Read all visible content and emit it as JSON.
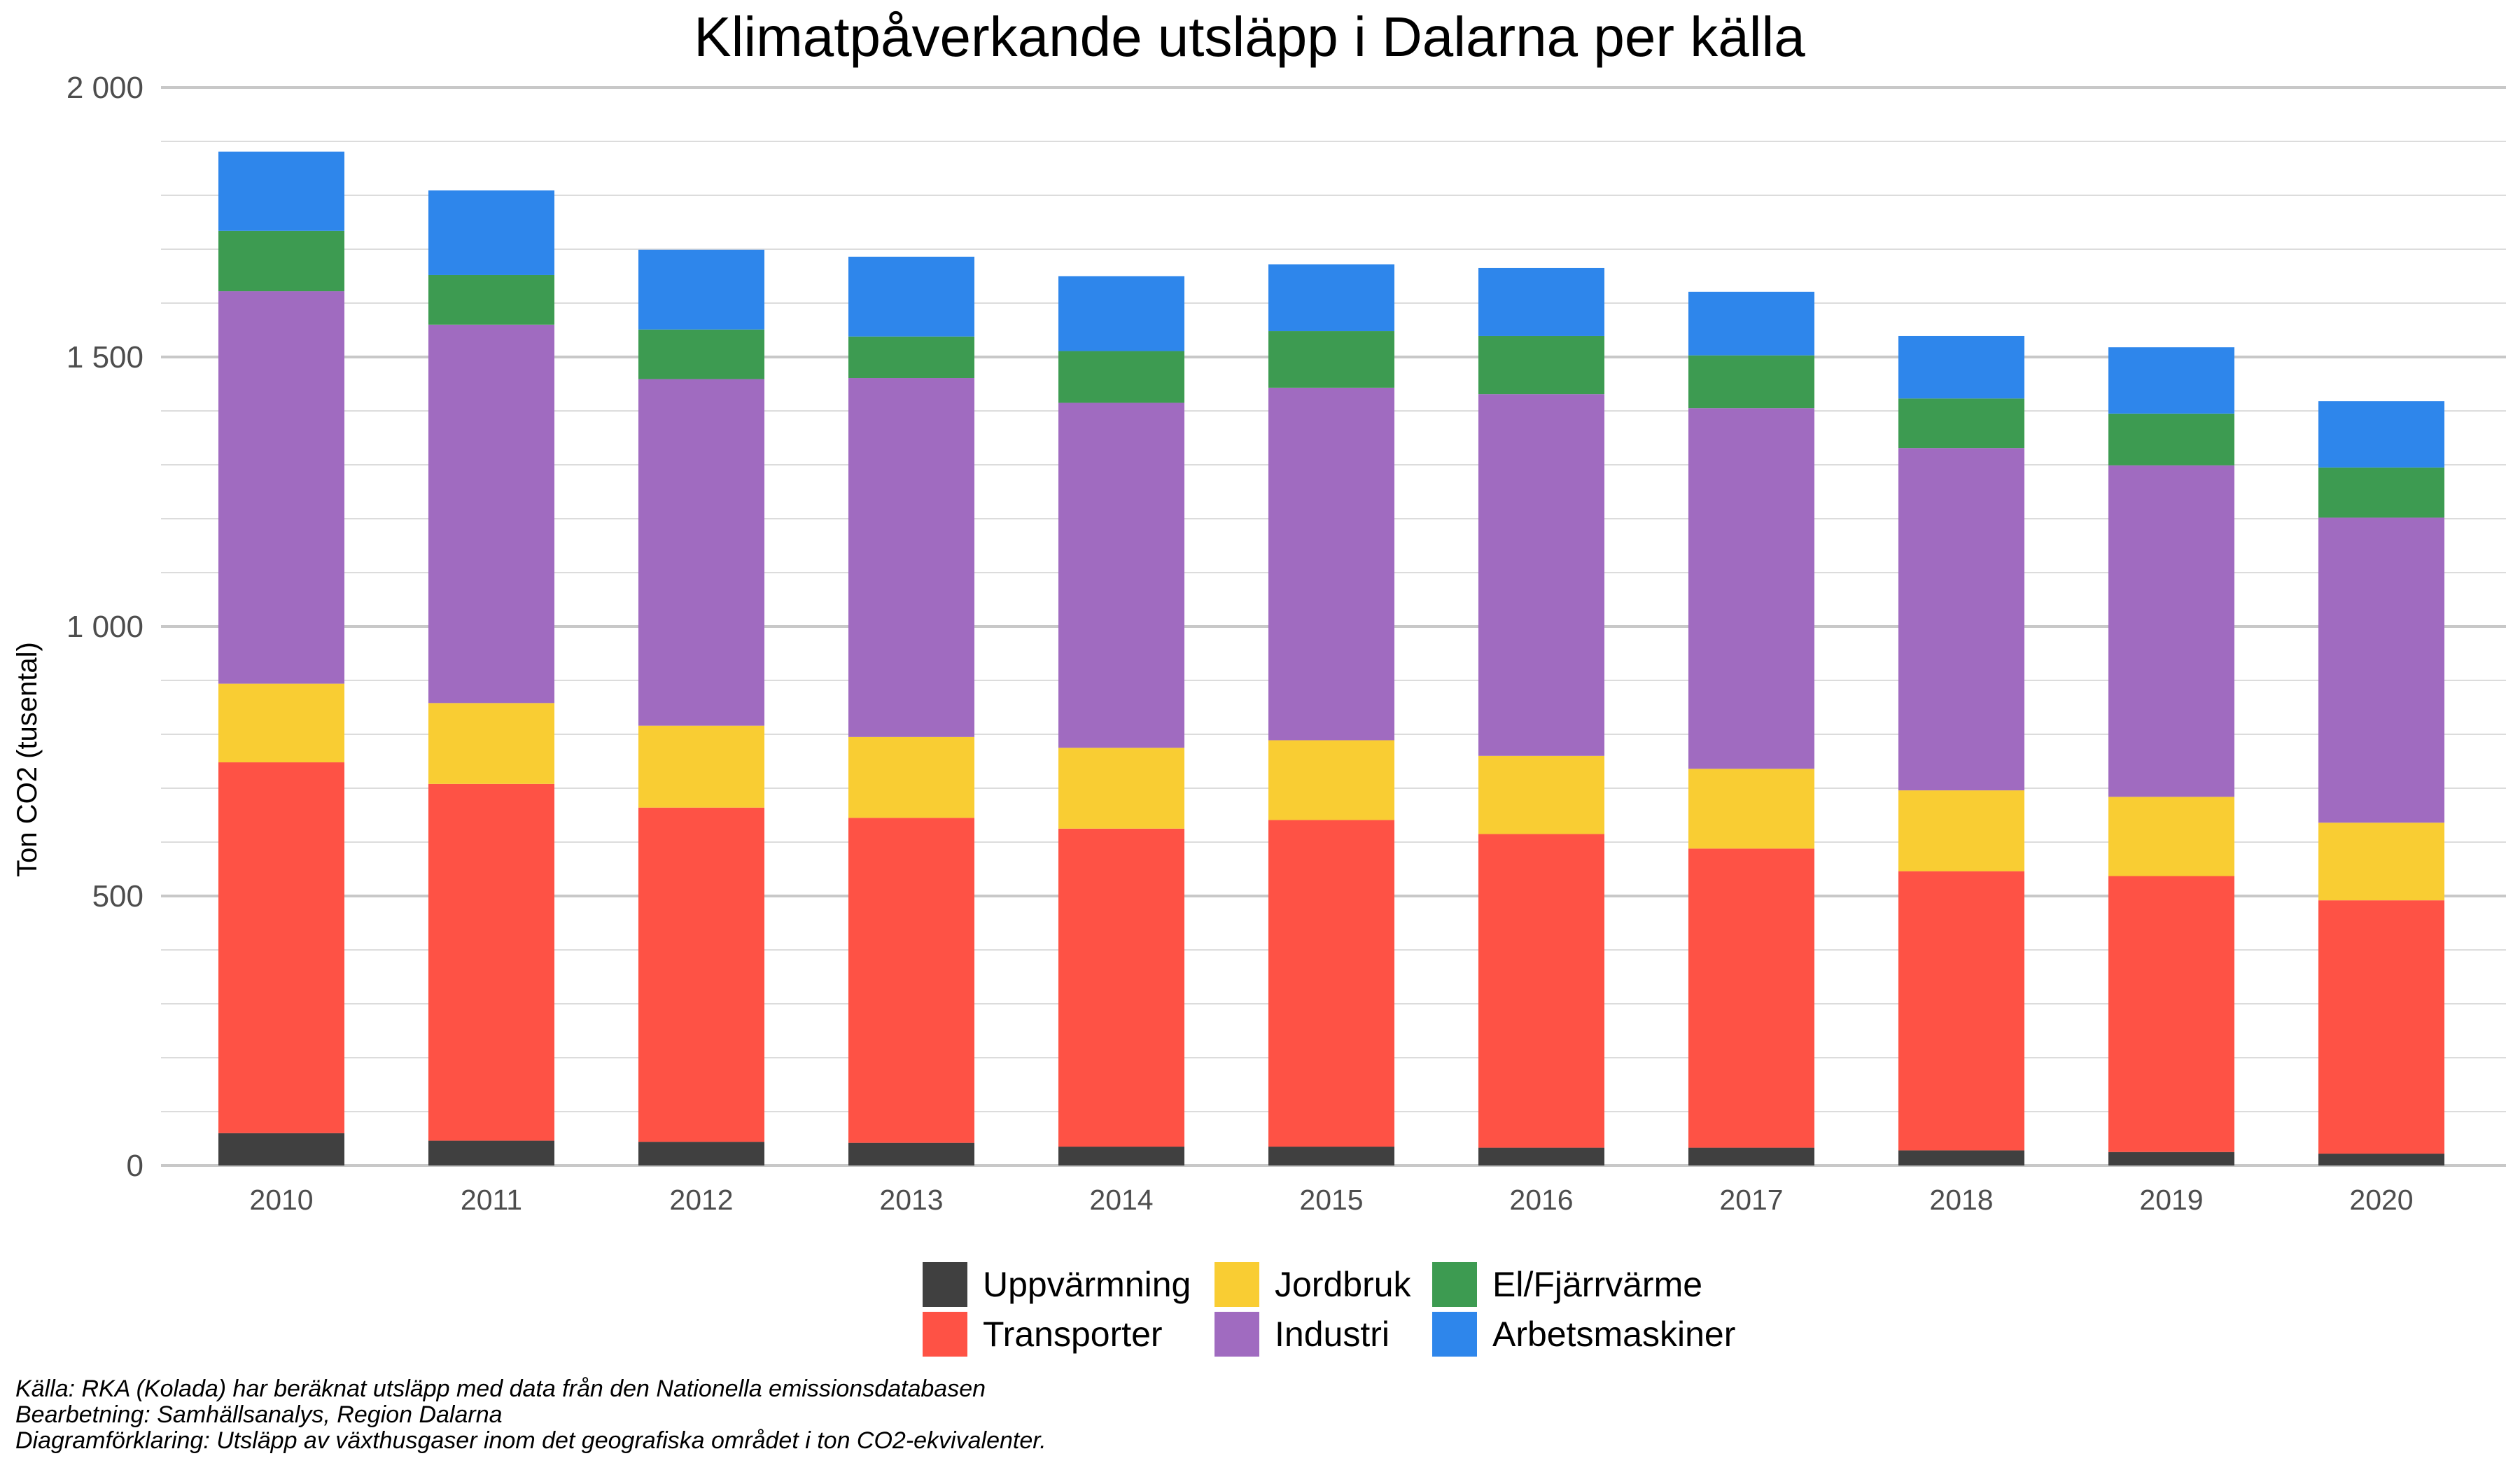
{
  "chart_data": {
    "type": "bar",
    "stacked": true,
    "title": "Klimatpåverkande utsläpp i Dalarna per källa",
    "ylabel": "Ton CO2 (tusental)",
    "xlabel": "",
    "ylim": [
      0,
      2000
    ],
    "yticks": [
      0,
      500,
      1000,
      1500,
      2000
    ],
    "ytick_labels": [
      "0",
      "500",
      "1 000",
      "1 500",
      "2 000"
    ],
    "categories": [
      "2010",
      "2011",
      "2012",
      "2013",
      "2014",
      "2015",
      "2016",
      "2017",
      "2018",
      "2019",
      "2020"
    ],
    "grid": true,
    "legend_position": "bottom",
    "series": [
      {
        "name": "Uppvärmning",
        "color": "#404040",
        "values": [
          60,
          46,
          44,
          42,
          35,
          35,
          33,
          33,
          28,
          25,
          22
        ]
      },
      {
        "name": "Transporter",
        "color": "#fe5245",
        "values": [
          688,
          662,
          620,
          603,
          590,
          606,
          582,
          555,
          518,
          512,
          470
        ]
      },
      {
        "name": "Jordbruk",
        "color": "#f9cd33",
        "values": [
          146,
          150,
          152,
          150,
          150,
          148,
          145,
          148,
          150,
          147,
          144
        ]
      },
      {
        "name": "Industri",
        "color": "#a06bc0",
        "values": [
          728,
          702,
          643,
          666,
          640,
          654,
          671,
          669,
          635,
          615,
          566
        ]
      },
      {
        "name": "El/Fjärrvärme",
        "color": "#3d9b51",
        "values": [
          112,
          92,
          92,
          77,
          96,
          105,
          108,
          98,
          92,
          96,
          93
        ]
      },
      {
        "name": "Arbetsmaskiner",
        "color": "#2e86eb",
        "values": [
          147,
          157,
          148,
          148,
          139,
          124,
          126,
          118,
          116,
          123,
          123
        ]
      }
    ],
    "caption": [
      "Källa:  RKA (Kolada) har beräknat utsläpp med data från den Nationella emissionsdatabasen",
      "Bearbetning: Samhällsanalys, Region Dalarna",
      "Diagramförklaring: Utsläpp av växthusgaser inom det geografiska området i ton CO2-ekvivalenter."
    ]
  }
}
